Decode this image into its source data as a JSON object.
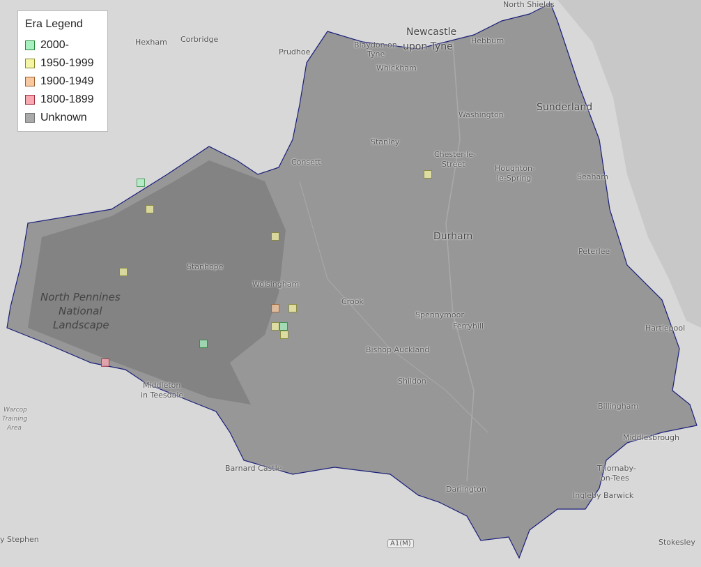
{
  "legend": {
    "title": "Era Legend",
    "items": [
      {
        "label": "2000-",
        "fill": "#a8f0c0",
        "stroke": "#2a8a3a"
      },
      {
        "label": "1950-1999",
        "fill": "#f5f5a8",
        "stroke": "#8a8a2a"
      },
      {
        "label": "1900-1949",
        "fill": "#f8c8a0",
        "stroke": "#a06030"
      },
      {
        "label": "1800-1899",
        "fill": "#f8a8b0",
        "stroke": "#a03040"
      },
      {
        "label": "Unknown",
        "fill": "#aaaaaa",
        "stroke": "#777777"
      }
    ]
  },
  "colors": {
    "region_fill": "#8c8c8c",
    "region_border": "#1a1f7a",
    "basemap": "#d6d6d6"
  },
  "places": [
    "North Shields",
    "Newcastle",
    "upon Tyne",
    "Blaydon on",
    "Tyne",
    "Hebburn",
    "Hexham",
    "Corbridge",
    "Prudhoe",
    "Whickham",
    "Washington",
    "Sunderland",
    "Stanley",
    "Chester-le-",
    "Street",
    "Houghton-",
    "le-Spring",
    "Consett",
    "Seaham",
    "Durham",
    "Peterlee",
    "Stanhope",
    "Wolsingham",
    "Crook",
    "Spennymoor",
    "Ferryhill",
    "Hartlepool",
    "Bishop Auckland",
    "Shildon",
    "Middleton",
    "in Teesdale",
    "Billingham",
    "Middlesbrough",
    "Thornaby-",
    "on-Tees",
    "Barnard Castle",
    "Darlington",
    "Ingleby Barwick",
    "Stokesley",
    "y Stephen"
  ],
  "park": [
    "North Pennines",
    "National",
    "Landscape"
  ],
  "small": [
    "Warcop",
    "Training",
    "Area"
  ],
  "road": "A1(M)",
  "markers": [
    {
      "era": "2000-"
    },
    {
      "era": "2000-"
    },
    {
      "era": "2000-"
    },
    {
      "era": "1950-1999"
    },
    {
      "era": "1950-1999"
    },
    {
      "era": "1950-1999"
    },
    {
      "era": "1950-1999"
    },
    {
      "era": "1950-1999"
    },
    {
      "era": "1950-1999"
    },
    {
      "era": "1950-1999"
    },
    {
      "era": "1900-1949"
    },
    {
      "era": "1800-1899"
    }
  ]
}
